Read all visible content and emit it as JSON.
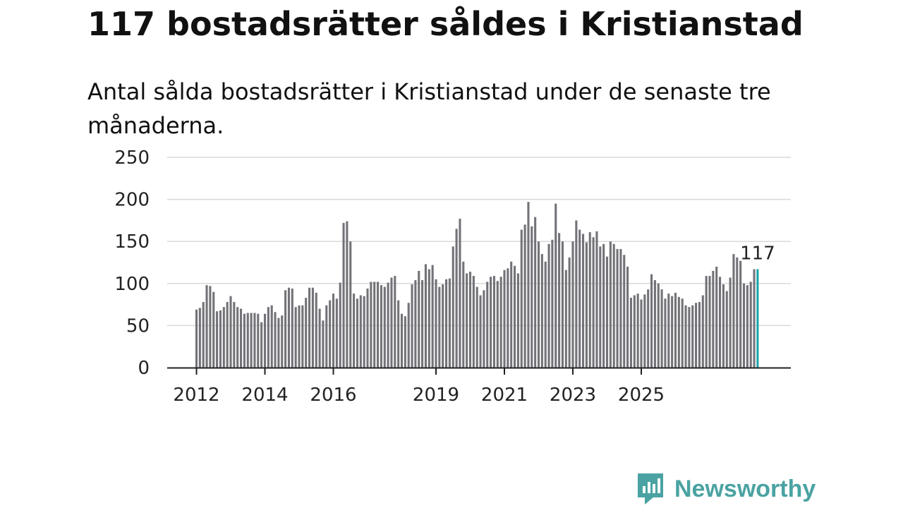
{
  "title": "117 bostadsrätter såldes i Kristianstad",
  "subtitle": "Antal sålda bostadsrätter i Kristianstad under de senaste tre månaderna.",
  "logo": {
    "text": "Newsworthy",
    "color": "#4aa3a2"
  },
  "colors": {
    "bar": "#737278",
    "highlight": "#1aa6a6",
    "grid": "#d9d9d9",
    "axis": "#222222"
  },
  "chart_data": {
    "type": "bar",
    "title": "117 bostadsrätter såldes i Kristianstad",
    "xlabel": "",
    "ylabel": "",
    "ylim": [
      0,
      250
    ],
    "yticks": [
      "0",
      "50",
      "100",
      "150",
      "200",
      "250"
    ],
    "xticks": [
      {
        "label": "2012",
        "index": 0
      },
      {
        "label": "2014",
        "index": 20
      },
      {
        "label": "2016",
        "index": 40
      },
      {
        "label": "2019",
        "index": 70
      },
      {
        "label": "2021",
        "index": 90
      },
      {
        "label": "2023",
        "index": 110
      },
      {
        "label": "2025",
        "index": 130
      }
    ],
    "last_value_label": "117",
    "values": [
      69,
      71,
      78,
      98,
      97,
      90,
      67,
      68,
      72,
      78,
      85,
      78,
      72,
      70,
      64,
      65,
      65,
      65,
      64,
      54,
      64,
      72,
      74,
      66,
      59,
      62,
      92,
      95,
      94,
      72,
      74,
      74,
      83,
      95,
      95,
      89,
      70,
      56,
      74,
      80,
      88,
      82,
      101,
      172,
      174,
      150,
      88,
      82,
      86,
      85,
      94,
      102,
      102,
      102,
      98,
      96,
      101,
      107,
      109,
      80,
      64,
      61,
      77,
      99,
      104,
      115,
      104,
      123,
      117,
      122,
      105,
      96,
      99,
      105,
      106,
      144,
      165,
      177,
      126,
      112,
      114,
      109,
      96,
      86,
      92,
      102,
      108,
      109,
      103,
      108,
      116,
      118,
      126,
      121,
      112,
      164,
      170,
      197,
      168,
      179,
      150,
      135,
      126,
      147,
      152,
      195,
      160,
      150,
      116,
      131,
      150,
      175,
      164,
      159,
      149,
      161,
      155,
      162,
      144,
      147,
      132,
      150,
      147,
      141,
      141,
      134,
      120,
      83,
      86,
      88,
      81,
      87,
      93,
      111,
      104,
      100,
      93,
      82,
      88,
      85,
      89,
      84,
      82,
      74,
      72,
      74,
      77,
      78,
      86,
      109,
      109,
      115,
      120,
      108,
      99,
      91,
      107,
      135,
      131,
      127,
      100,
      98,
      102,
      117,
      117
    ]
  }
}
